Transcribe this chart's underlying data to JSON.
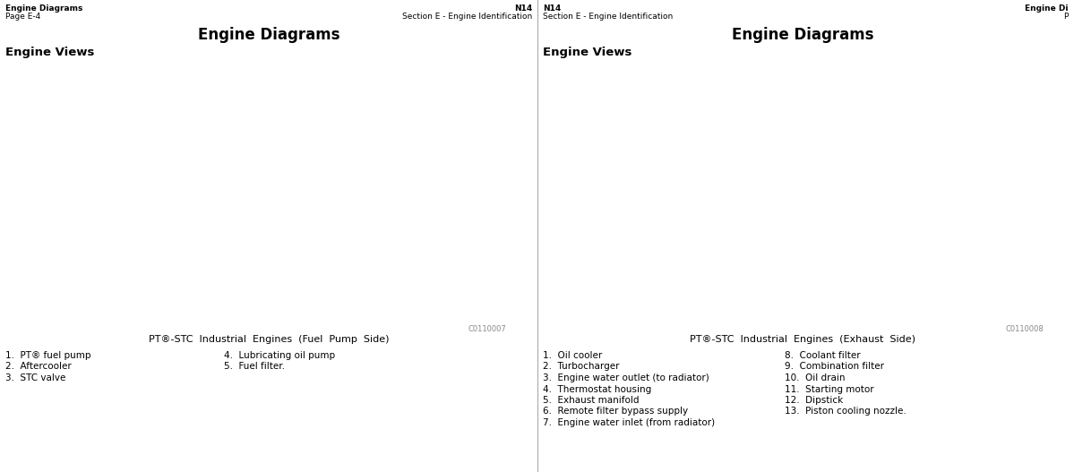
{
  "bg_color": "#ffffff",
  "left_page": {
    "header_left_line1": "Engine Diagrams",
    "header_left_line2": "Page E-4",
    "header_right_line1": "N14",
    "header_right_line2": "Section E - Engine Identification",
    "title": "Engine Diagrams",
    "subtitle": "Engine Views",
    "caption": "PT®-STC  Industrial  Engines  (Fuel  Pump  Side)",
    "img_code": "C0110007",
    "legend_col1": [
      "1.  PT® fuel pump",
      "2.  Aftercooler",
      "3.  STC valve"
    ],
    "legend_col2": [
      "4.  Lubricating oil pump",
      "5.  Fuel filter."
    ]
  },
  "right_page": {
    "header_left_line1": "N14",
    "header_left_line2": "Section E - Engine Identification",
    "header_right_line1": "Engine Di",
    "header_right_line2": "P",
    "title": "Engine Diagrams",
    "subtitle": "Engine Views",
    "caption": "PT®-STC  Industrial  Engines  (Exhaust  Side)",
    "img_code": "C0110008",
    "legend_col1": [
      "1.  Oil cooler",
      "2.  Turbocharger",
      "3.  Engine water outlet (to radiator)",
      "4.  Thermostat housing",
      "5.  Exhaust manifold",
      "6.  Remote filter bypass supply",
      "7.  Engine water inlet (from radiator)"
    ],
    "legend_col2": [
      "8.  Coolant filter",
      "9.  Combination filter",
      "10.  Oil drain",
      "11.  Starting motor",
      "12.  Dipstick",
      "13.  Piston cooling nozzle."
    ]
  },
  "header_fontsize": 6.5,
  "title_fontsize": 12,
  "subtitle_fontsize": 9.5,
  "caption_fontsize": 8,
  "legend_fontsize": 7.5,
  "img_code_fontsize": 6
}
